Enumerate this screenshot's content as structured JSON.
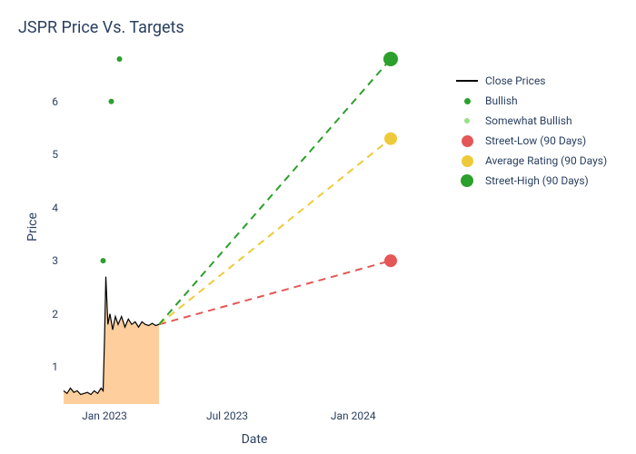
{
  "title": "JSPR Price Vs. Targets",
  "xlabel": "Date",
  "ylabel": "Price",
  "background_color": "#ffffff",
  "grid_color": "#ffffff",
  "tick_color": "#2a3f5f",
  "title_fontsize": 18,
  "label_fontsize": 14,
  "tick_fontsize": 12,
  "ylim": [
    0.3,
    6.8
  ],
  "xlim_days": [
    0,
    560
  ],
  "xticks": [
    {
      "day": 60,
      "label": "Jan 2023"
    },
    {
      "day": 240,
      "label": "Jul 2023"
    },
    {
      "day": 425,
      "label": "Jan 2024"
    }
  ],
  "yticks": [
    1,
    2,
    3,
    4,
    5,
    6
  ],
  "close_series": {
    "color": "#000000",
    "line_width": 1.2,
    "area_fill": "#fdba74",
    "area_opacity": 0.7,
    "points": [
      [
        0,
        0.55
      ],
      [
        5,
        0.5
      ],
      [
        10,
        0.6
      ],
      [
        15,
        0.52
      ],
      [
        20,
        0.55
      ],
      [
        25,
        0.48
      ],
      [
        30,
        0.5
      ],
      [
        35,
        0.52
      ],
      [
        40,
        0.48
      ],
      [
        45,
        0.55
      ],
      [
        50,
        0.5
      ],
      [
        55,
        0.6
      ],
      [
        58,
        0.55
      ],
      [
        60,
        1.5
      ],
      [
        62,
        2.7
      ],
      [
        65,
        1.8
      ],
      [
        68,
        2.0
      ],
      [
        72,
        1.7
      ],
      [
        76,
        1.95
      ],
      [
        80,
        1.8
      ],
      [
        85,
        1.95
      ],
      [
        90,
        1.75
      ],
      [
        95,
        1.9
      ],
      [
        100,
        1.8
      ],
      [
        105,
        1.85
      ],
      [
        110,
        1.75
      ],
      [
        115,
        1.85
      ],
      [
        120,
        1.8
      ],
      [
        125,
        1.78
      ],
      [
        130,
        1.82
      ],
      [
        135,
        1.78
      ],
      [
        140,
        1.8
      ]
    ]
  },
  "bullish_points": {
    "color": "#2ca02c",
    "marker_size": 6,
    "points": [
      [
        58,
        3.0
      ],
      [
        70,
        6.0
      ],
      [
        82,
        6.8
      ]
    ]
  },
  "somewhat_bullish_points": {
    "color": "#98df8a",
    "marker_size": 5,
    "points": []
  },
  "target_lines": [
    {
      "name": "street-low",
      "from": [
        140,
        1.8
      ],
      "to": [
        480,
        3.0
      ],
      "color": "#e45756",
      "dash": "8,6",
      "width": 2,
      "end_marker": 14
    },
    {
      "name": "average-rating",
      "from": [
        140,
        1.8
      ],
      "to": [
        480,
        5.3
      ],
      "color": "#eeca3b",
      "dash": "8,6",
      "width": 2,
      "end_marker": 14
    },
    {
      "name": "street-high",
      "from": [
        140,
        1.8
      ],
      "to": [
        480,
        6.8
      ],
      "color": "#2ca02c",
      "dash": "8,6",
      "width": 2,
      "end_marker": 16
    }
  ],
  "legend": [
    {
      "type": "line",
      "label": "Close Prices",
      "color": "#000000"
    },
    {
      "type": "dot",
      "label": "Bullish",
      "color": "#2ca02c",
      "size": 7
    },
    {
      "type": "dot",
      "label": "Somewhat Bullish",
      "color": "#98df8a",
      "size": 6
    },
    {
      "type": "dot",
      "label": "Street-Low (90 Days)",
      "color": "#e45756",
      "size": 13
    },
    {
      "type": "dot",
      "label": "Average Rating (90 Days)",
      "color": "#eeca3b",
      "size": 13
    },
    {
      "type": "dot",
      "label": "Street-High (90 Days)",
      "color": "#2ca02c",
      "size": 14
    }
  ]
}
